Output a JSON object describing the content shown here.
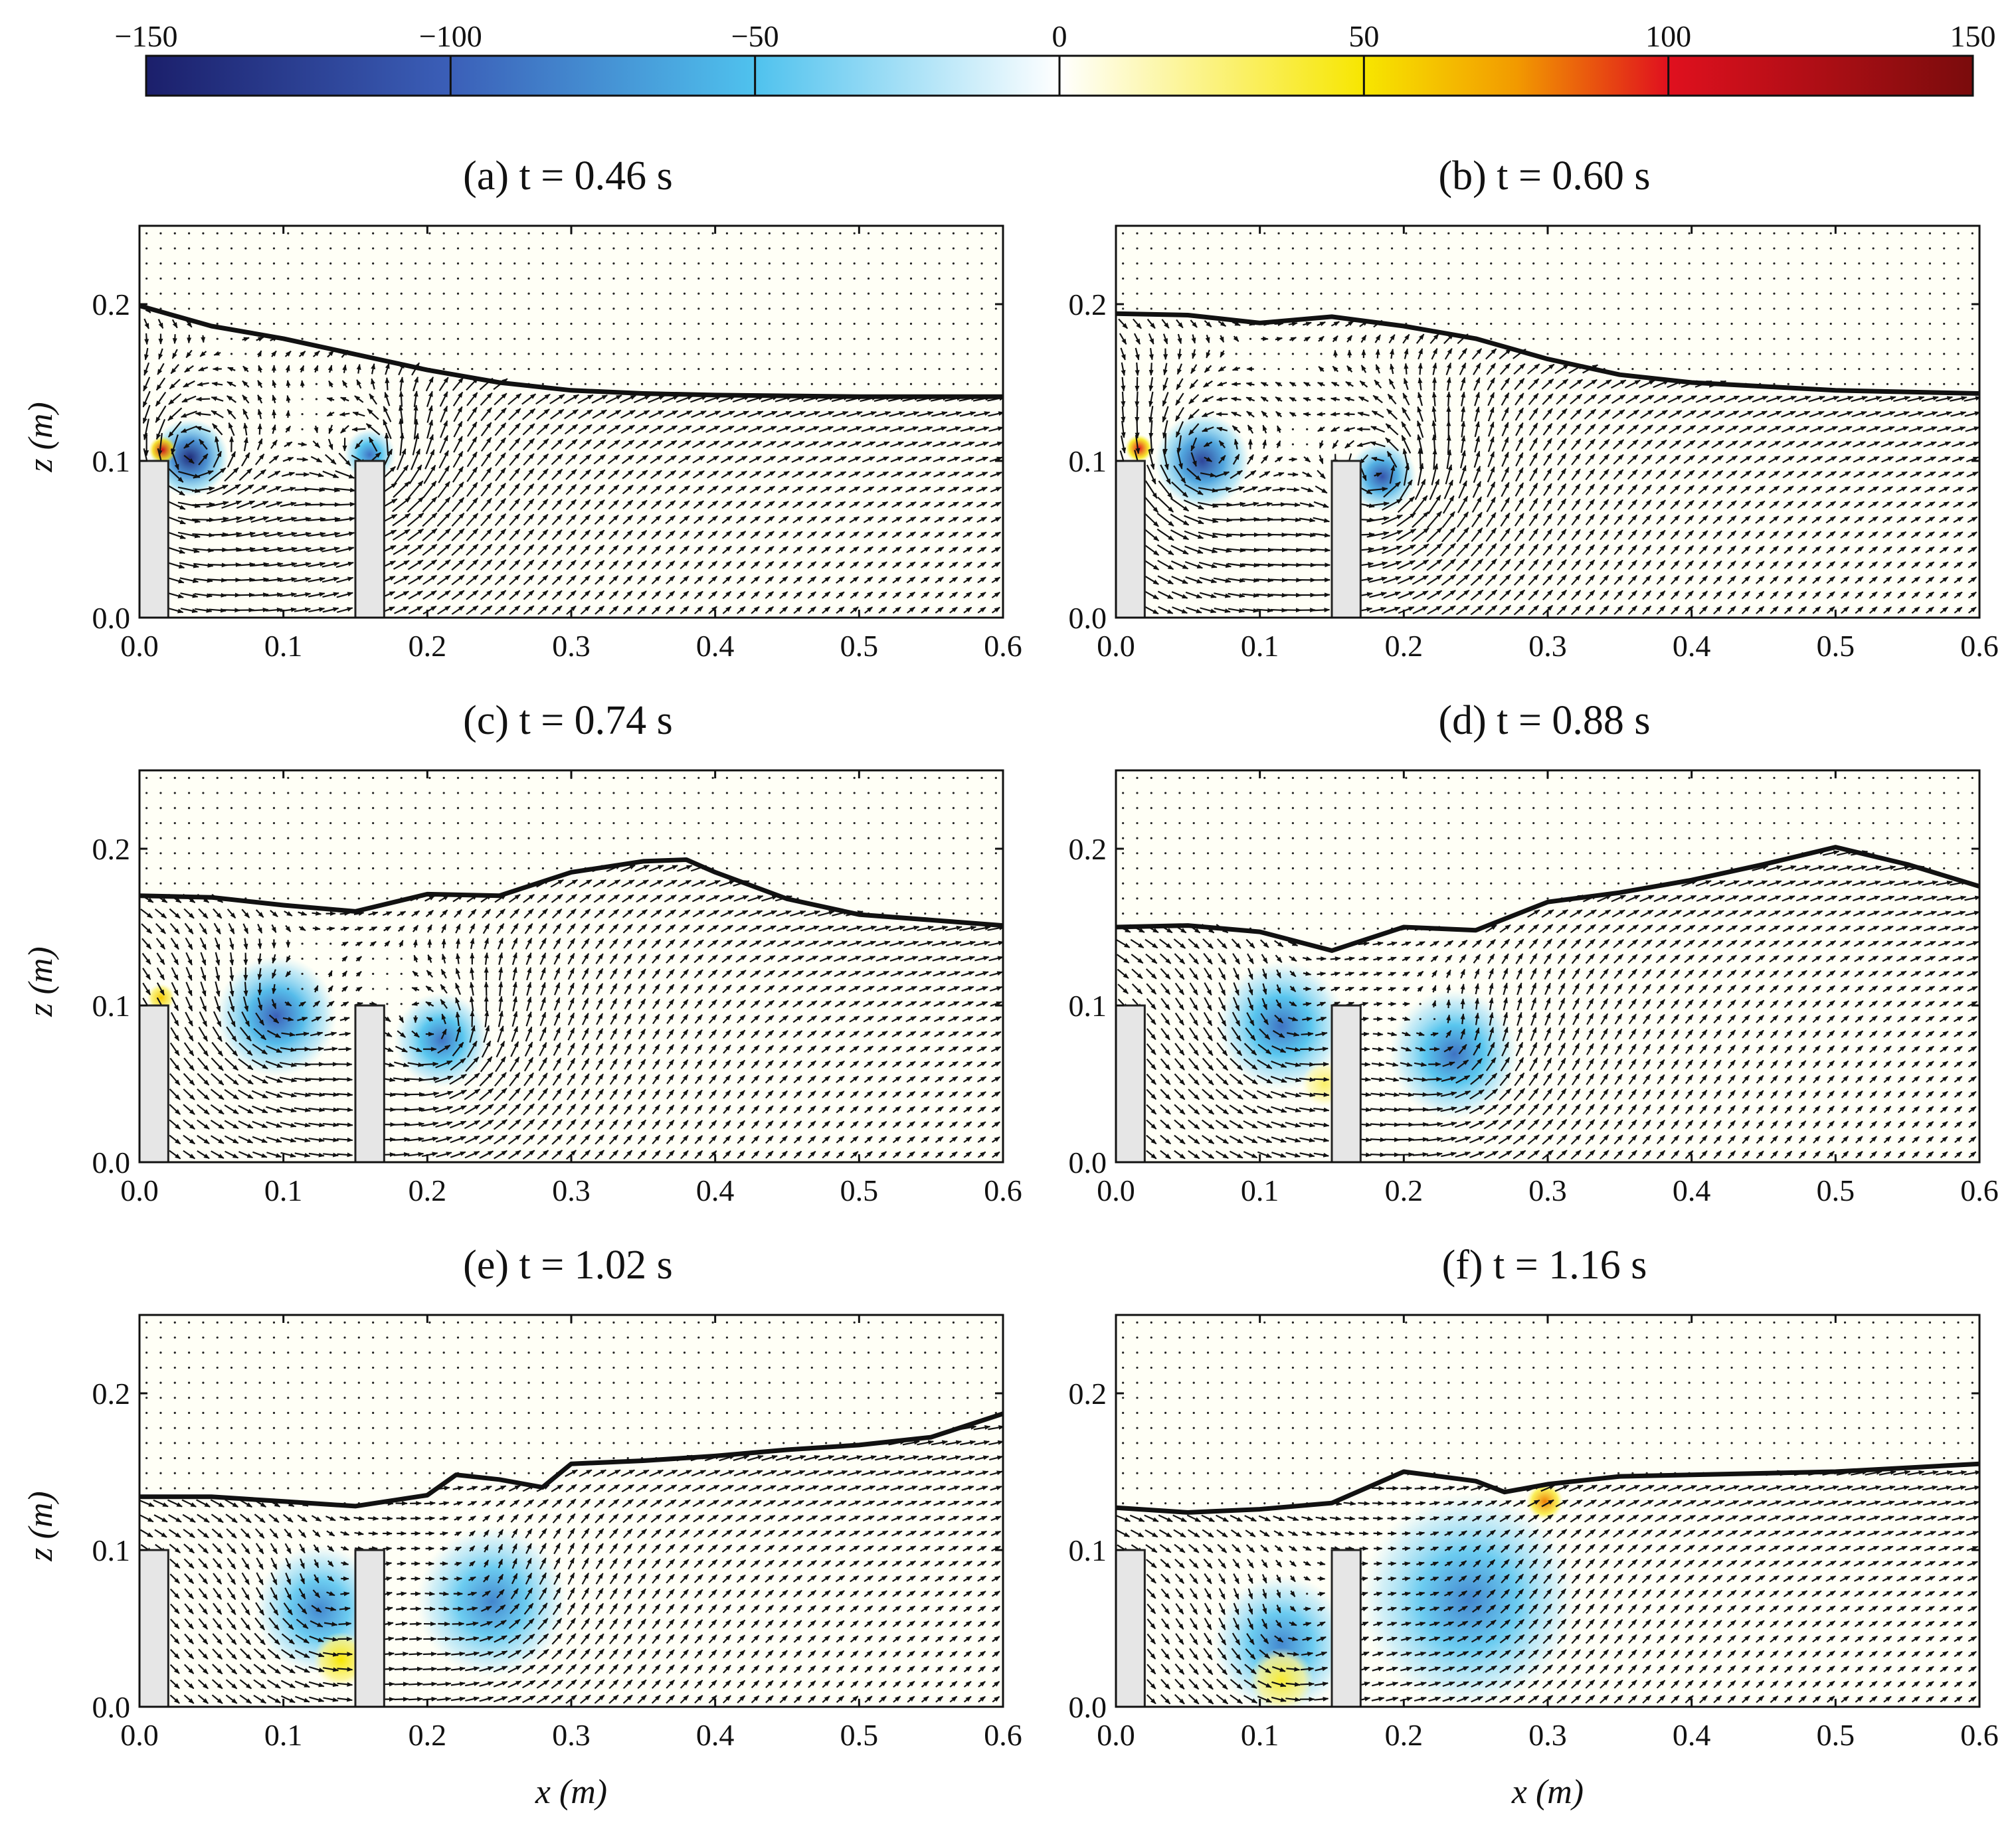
{
  "colorbar": {
    "range": [
      -150,
      150
    ],
    "ticks": [
      "−150",
      "−100",
      "−50",
      "0",
      "50",
      "100",
      "150"
    ],
    "tick_values": [
      -150,
      -100,
      -50,
      0,
      50,
      100,
      150
    ],
    "colors": {
      "neg_max": "#1b1f6b",
      "neg_mid": "#3b5fb8",
      "neg_low": "#4fc2ee",
      "zero": "#ffffff",
      "pos_low": "#f7e600",
      "pos_mid": "#f29a00",
      "pos_high": "#e0101e",
      "pos_max": "#7a0c0c"
    }
  },
  "chart_data": [
    {
      "type": "vector_field",
      "title": "(a) t = 0.46 s",
      "xlabel": "",
      "ylabel": "z (m)",
      "xlim": [
        0.0,
        0.6
      ],
      "ylim": [
        0.0,
        0.25
      ],
      "xticks": [
        "0.0",
        "0.1",
        "0.2",
        "0.3",
        "0.4",
        "0.5",
        "0.6"
      ],
      "yticks": [
        "0.0",
        "0.1",
        "0.2"
      ],
      "obstacles": [
        [
          0.0,
          0.02,
          0.1
        ],
        [
          0.15,
          0.17,
          0.1
        ]
      ],
      "free_surface": [
        [
          0.0,
          0.199
        ],
        [
          0.05,
          0.186
        ],
        [
          0.1,
          0.178
        ],
        [
          0.15,
          0.168
        ],
        [
          0.2,
          0.158
        ],
        [
          0.25,
          0.15
        ],
        [
          0.3,
          0.145
        ],
        [
          0.35,
          0.143
        ],
        [
          0.4,
          0.142
        ],
        [
          0.5,
          0.141
        ],
        [
          0.6,
          0.141
        ]
      ],
      "vortices": [
        {
          "x": 0.035,
          "z": 0.102,
          "strength": -140,
          "r": 0.018
        },
        {
          "x": 0.16,
          "z": 0.104,
          "strength": -90,
          "r": 0.012
        }
      ],
      "positive_zones": [
        {
          "x": 0.016,
          "z": 0.107,
          "r": 0.006,
          "strength": 110
        }
      ]
    },
    {
      "type": "vector_field",
      "title": "(b) t = 0.60 s",
      "xlabel": "",
      "ylabel": "",
      "xlim": [
        0.0,
        0.6
      ],
      "ylim": [
        0.0,
        0.25
      ],
      "xticks": [
        "0.0",
        "0.1",
        "0.2",
        "0.3",
        "0.4",
        "0.5",
        "0.6"
      ],
      "yticks": [
        "0.0",
        "0.1",
        "0.2"
      ],
      "obstacles": [
        [
          0.0,
          0.02,
          0.1
        ],
        [
          0.15,
          0.17,
          0.1
        ]
      ],
      "free_surface": [
        [
          0.0,
          0.194
        ],
        [
          0.05,
          0.193
        ],
        [
          0.1,
          0.188
        ],
        [
          0.15,
          0.192
        ],
        [
          0.2,
          0.186
        ],
        [
          0.25,
          0.178
        ],
        [
          0.3,
          0.165
        ],
        [
          0.35,
          0.155
        ],
        [
          0.4,
          0.15
        ],
        [
          0.5,
          0.145
        ],
        [
          0.6,
          0.143
        ]
      ],
      "vortices": [
        {
          "x": 0.06,
          "z": 0.1,
          "strength": -120,
          "r": 0.022
        },
        {
          "x": 0.185,
          "z": 0.09,
          "strength": -110,
          "r": 0.016
        }
      ],
      "positive_zones": [
        {
          "x": 0.016,
          "z": 0.108,
          "r": 0.006,
          "strength": 100
        }
      ]
    },
    {
      "type": "vector_field",
      "title": "(c) t = 0.74 s",
      "xlabel": "",
      "ylabel": "z (m)",
      "xlim": [
        0.0,
        0.6
      ],
      "ylim": [
        0.0,
        0.25
      ],
      "xticks": [
        "0.0",
        "0.1",
        "0.2",
        "0.3",
        "0.4",
        "0.5",
        "0.6"
      ],
      "yticks": [
        "0.0",
        "0.1",
        "0.2"
      ],
      "obstacles": [
        [
          0.0,
          0.02,
          0.1
        ],
        [
          0.15,
          0.17,
          0.1
        ]
      ],
      "free_surface": [
        [
          0.0,
          0.17
        ],
        [
          0.05,
          0.169
        ],
        [
          0.1,
          0.164
        ],
        [
          0.15,
          0.16
        ],
        [
          0.2,
          0.171
        ],
        [
          0.25,
          0.17
        ],
        [
          0.3,
          0.185
        ],
        [
          0.35,
          0.192
        ],
        [
          0.38,
          0.193
        ],
        [
          0.4,
          0.185
        ],
        [
          0.45,
          0.168
        ],
        [
          0.5,
          0.158
        ],
        [
          0.6,
          0.151
        ]
      ],
      "vortices": [
        {
          "x": 0.095,
          "z": 0.093,
          "strength": -100,
          "r": 0.028
        },
        {
          "x": 0.21,
          "z": 0.078,
          "strength": -90,
          "r": 0.022
        }
      ],
      "positive_zones": [
        {
          "x": 0.015,
          "z": 0.105,
          "r": 0.006,
          "strength": 60
        }
      ]
    },
    {
      "type": "vector_field",
      "title": "(d) t = 0.88 s",
      "xlabel": "",
      "ylabel": "",
      "xlim": [
        0.0,
        0.6
      ],
      "ylim": [
        0.0,
        0.25
      ],
      "xticks": [
        "0.0",
        "0.1",
        "0.2",
        "0.3",
        "0.4",
        "0.5",
        "0.6"
      ],
      "yticks": [
        "0.0",
        "0.1",
        "0.2"
      ],
      "obstacles": [
        [
          0.0,
          0.02,
          0.1
        ],
        [
          0.15,
          0.17,
          0.1
        ]
      ],
      "free_surface": [
        [
          0.0,
          0.15
        ],
        [
          0.05,
          0.151
        ],
        [
          0.1,
          0.147
        ],
        [
          0.15,
          0.135
        ],
        [
          0.2,
          0.15
        ],
        [
          0.25,
          0.148
        ],
        [
          0.3,
          0.166
        ],
        [
          0.35,
          0.172
        ],
        [
          0.4,
          0.18
        ],
        [
          0.45,
          0.19
        ],
        [
          0.5,
          0.201
        ],
        [
          0.55,
          0.19
        ],
        [
          0.6,
          0.176
        ]
      ],
      "vortices": [
        {
          "x": 0.115,
          "z": 0.087,
          "strength": -90,
          "r": 0.03
        },
        {
          "x": 0.235,
          "z": 0.069,
          "strength": -90,
          "r": 0.03
        }
      ],
      "positive_zones": [
        {
          "x": 0.145,
          "z": 0.05,
          "r": 0.01,
          "strength": 30
        }
      ]
    },
    {
      "type": "vector_field",
      "title": "(e) t = 1.02 s",
      "xlabel": "x (m)",
      "ylabel": "z (m)",
      "xlim": [
        0.0,
        0.6
      ],
      "ylim": [
        0.0,
        0.25
      ],
      "xticks": [
        "0.0",
        "0.1",
        "0.2",
        "0.3",
        "0.4",
        "0.5",
        "0.6"
      ],
      "yticks": [
        "0.0",
        "0.1",
        "0.2"
      ],
      "obstacles": [
        [
          0.0,
          0.02,
          0.1
        ],
        [
          0.15,
          0.17,
          0.1
        ]
      ],
      "free_surface": [
        [
          0.0,
          0.134
        ],
        [
          0.05,
          0.134
        ],
        [
          0.1,
          0.131
        ],
        [
          0.15,
          0.128
        ],
        [
          0.2,
          0.135
        ],
        [
          0.22,
          0.148
        ],
        [
          0.25,
          0.145
        ],
        [
          0.28,
          0.14
        ],
        [
          0.3,
          0.155
        ],
        [
          0.35,
          0.157
        ],
        [
          0.4,
          0.16
        ],
        [
          0.45,
          0.164
        ],
        [
          0.5,
          0.167
        ],
        [
          0.55,
          0.172
        ],
        [
          0.6,
          0.187
        ]
      ],
      "vortices": [
        {
          "x": 0.125,
          "z": 0.062,
          "strength": -80,
          "r": 0.03
        },
        {
          "x": 0.245,
          "z": 0.067,
          "strength": -80,
          "r": 0.035
        }
      ],
      "positive_zones": [
        {
          "x": 0.14,
          "z": 0.03,
          "r": 0.012,
          "strength": 50
        }
      ]
    },
    {
      "type": "vector_field",
      "title": "(f) t = 1.16 s",
      "xlabel": "x (m)",
      "ylabel": "",
      "xlim": [
        0.0,
        0.6
      ],
      "ylim": [
        0.0,
        0.25
      ],
      "xticks": [
        "0.0",
        "0.1",
        "0.2",
        "0.3",
        "0.4",
        "0.5",
        "0.6"
      ],
      "yticks": [
        "0.0",
        "0.1",
        "0.2"
      ],
      "obstacles": [
        [
          0.0,
          0.02,
          0.1
        ],
        [
          0.15,
          0.17,
          0.1
        ]
      ],
      "free_surface": [
        [
          0.0,
          0.127
        ],
        [
          0.05,
          0.124
        ],
        [
          0.1,
          0.126
        ],
        [
          0.15,
          0.13
        ],
        [
          0.2,
          0.15
        ],
        [
          0.25,
          0.144
        ],
        [
          0.27,
          0.137
        ],
        [
          0.3,
          0.142
        ],
        [
          0.35,
          0.147
        ],
        [
          0.4,
          0.148
        ],
        [
          0.5,
          0.15
        ],
        [
          0.6,
          0.155
        ]
      ],
      "vortices": [
        {
          "x": 0.115,
          "z": 0.04,
          "strength": -80,
          "r": 0.032
        },
        {
          "x": 0.245,
          "z": 0.068,
          "strength": -80,
          "r": 0.05
        }
      ],
      "positive_zones": [
        {
          "x": 0.115,
          "z": 0.017,
          "r": 0.014,
          "strength": 40
        },
        {
          "x": 0.298,
          "z": 0.131,
          "r": 0.008,
          "strength": 80
        }
      ]
    }
  ]
}
